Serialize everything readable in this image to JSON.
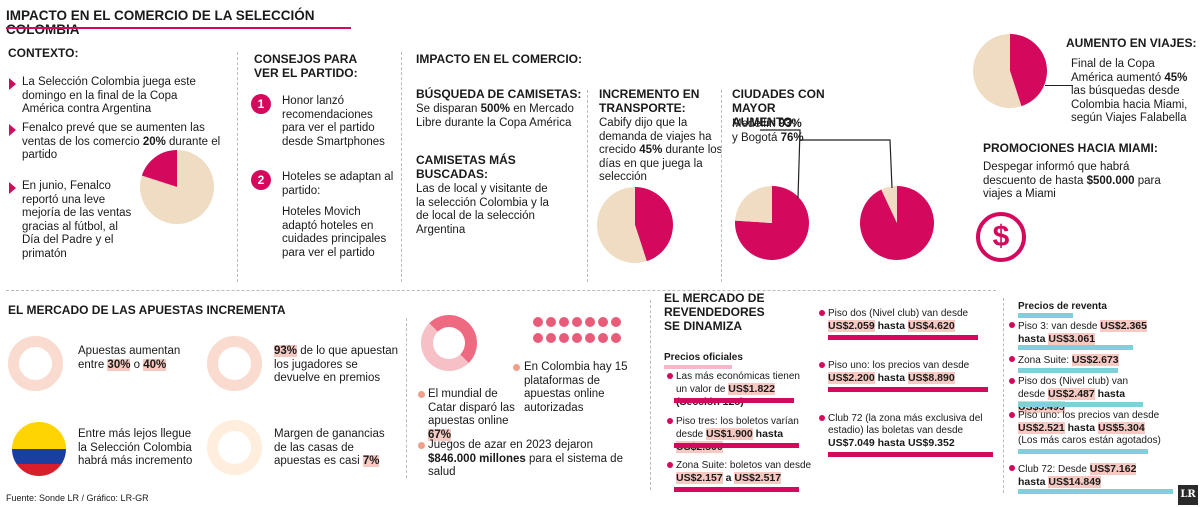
{
  "title": "IMPACTO EN EL COMERCIO DE LA SELECCIÓN COLOMBIA",
  "contexto": {
    "heading": "CONTEXTO:",
    "items": [
      {
        "text": "La Selección Colombia juega este domingo en la final de la Copa América contra Argentina"
      },
      {
        "pre": "Fenalco prevé que se aumenten las ventas de los comercio ",
        "bold": "20%",
        "post": " durante el partido"
      },
      {
        "text": "En junio, Fenalco reportó una leve mejoría de las ventas gracias al fútbol, al Día del Padre y el primatón"
      }
    ]
  },
  "consejos": {
    "heading": "CONSEJOS PARA VER EL PARTIDO:",
    "items": [
      {
        "n": "1",
        "text": "Honor lanzó recomendaciones para ver el partido desde Smartphones"
      },
      {
        "n": "2",
        "text": "Hoteles se adaptan al partido:",
        "text2": "Hoteles Movich adaptó hoteles en cuidades principales para ver el partido"
      }
    ]
  },
  "impacto": {
    "heading": "IMPACTO EN EL COMERCIO:",
    "busqueda": {
      "heading": "BÚSQUEDA DE CAMISETAS:",
      "pre": "Se disparan ",
      "bold": "500%",
      "post": " en Mercado Libre durante la Copa América"
    },
    "camisetas": {
      "heading": "CAMISETAS MÁS BUSCADAS:",
      "text": "Las de local y visitante de la selección Colombia y la de local de la selección Argentina"
    },
    "transporte": {
      "heading": "INCREMENTO EN TRANSPORTE:",
      "pre": "Cabify dijo que la demanda de viajes ha crecido ",
      "bold": "45%",
      "post": " durante los días en que juega la selección"
    },
    "ciudades": {
      "heading": "CIUDADES CON MAYOR AUMENTO:",
      "line1": "Medellín ",
      "v1": "93%",
      "line2": "y Bogotá ",
      "v2": "76%"
    }
  },
  "viajes": {
    "heading": "AUMENTO EN VIAJES:",
    "pre": "Final de la Copa América aumentó ",
    "bold": "45%",
    "post": " las búsquedas desde Colombia hacia Miami, según Viajes Falabella"
  },
  "promos": {
    "heading": "PROMOCIONES HACIA MIAMI:",
    "pre": "Despegar informó que habrá descuento de hasta ",
    "bold": "$500.000",
    "post": " para viajes a Miami"
  },
  "apuestas": {
    "heading": "EL MERCADO DE LAS APUESTAS INCREMENTA",
    "a1": {
      "pre": "Apuestas aumentan entre ",
      "v1": "30%",
      "mid": " o ",
      "v2": "40%"
    },
    "a2": {
      "v": "93%",
      "post": " de lo que apuestan los jugadores se devuelve en premios"
    },
    "a3": "Entre más lejos llegue la Selección Colombia habrá más incremento",
    "a4": {
      "pre": "Margen de ganancias de las casas de apuestas es casi ",
      "v": "7%"
    },
    "a5": {
      "pre": "El mundial de Catar disparó las apuestas online ",
      "v": "67%"
    },
    "a6": {
      "pre": "Juegos de azar en 2023 dejaron ",
      "bold": "$846.000 millones",
      "post": " para el sistema de salud"
    },
    "a7": "En Colombia hay 15 plataformas de apuestas online autorizadas"
  },
  "reventa": {
    "heading": "EL MERCADO DE REVENDEDORES SE DINAMIZA",
    "oficiales": "Precios oficiales",
    "o1": {
      "pre": "Las más económicas tienen un valor de ",
      "v": "US$1.822",
      "post": " (Sección 128)"
    },
    "o2": {
      "pre": "Piso tres: los boletos varían desde ",
      "v1": "US$1.900",
      "mid": " hasta ",
      "v2": "US$2.500"
    },
    "o3": {
      "pre": "Zona Suite: boletos van desde ",
      "v1": "US$2.157",
      "mid": " a ",
      "v2": "US$2.517"
    },
    "m1": {
      "pre": "Piso dos (Nivel club) van desde ",
      "v1": "US$2.059",
      "mid": " hasta ",
      "v2": "US$4.620"
    },
    "m2": {
      "pre": "Piso uno: los precios van desde ",
      "v1": "US$2.200",
      "mid": " hasta ",
      "v2": "US$8.890"
    },
    "m3": {
      "pre": "Club 72 (la zona más exclusiva del estadio) las boletas van desde ",
      "v": "US$7.049 hasta US$9.352"
    },
    "revheading": "Precios de reventa",
    "r1": {
      "pre": "Piso 3: van desde ",
      "v1": "US$2.365",
      "mid": " hasta ",
      "v2": "US$3.061"
    },
    "r2": {
      "pre": "Zona Suite: ",
      "v": "US$2.673"
    },
    "r3": {
      "pre": "Piso dos (Nivel club) van desde ",
      "v1": "US$2.487",
      "mid": " hasta ",
      "v2": "US$5.495"
    },
    "r4": {
      "pre": "Piso uno: los precios van desde ",
      "v1": "US$2.521",
      "mid": " hasta ",
      "v2": "US$5.304",
      "post": "(Los más caros están agotados)"
    },
    "r5": {
      "pre": "Club 72: Desde ",
      "v1": "US$7.162",
      "mid": "hasta ",
      "v2": "US$14.849"
    }
  },
  "fuente": "Fuente: Sonde LR / Gráfico: LR-GR",
  "logo": "LR",
  "colors": {
    "accent": "#d4095e",
    "beige": "#efdcc2",
    "teal": "#7fd0d8"
  },
  "chart_data": [
    {
      "type": "pie",
      "slices": [
        {
          "value": 20
        },
        {
          "value": 80
        }
      ]
    },
    {
      "type": "pie",
      "slices": [
        {
          "value": 45
        },
        {
          "value": 55
        }
      ]
    },
    {
      "type": "pie",
      "slices": [
        {
          "value": 93
        },
        {
          "value": 7
        }
      ]
    },
    {
      "type": "pie",
      "slices": [
        {
          "value": 76
        },
        {
          "value": 24
        }
      ]
    },
    {
      "type": "pie",
      "slices": [
        {
          "value": 45
        },
        {
          "value": 55
        }
      ]
    }
  ]
}
